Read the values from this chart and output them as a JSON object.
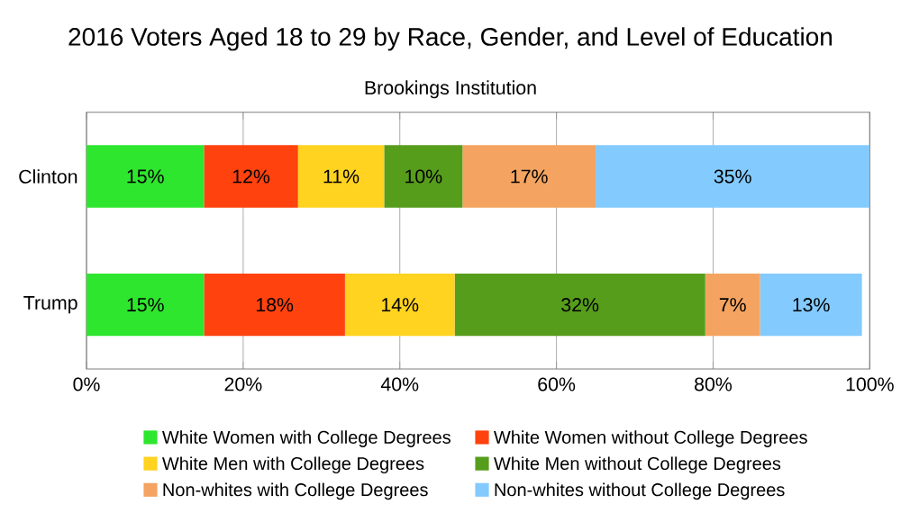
{
  "chart_data": {
    "type": "bar",
    "orientation": "horizontal",
    "stacked": true,
    "title": "2016 Voters Aged 18 to 29 by Race, Gender, and Level of Education",
    "subtitle": "Brookings Institution",
    "categories": [
      "Clinton",
      "Trump"
    ],
    "series": [
      {
        "name": "White Women with College Degrees",
        "color": "#2ee62e",
        "values": [
          15,
          15
        ],
        "value_labels": [
          "15%",
          "15%"
        ]
      },
      {
        "name": "White Women without College Degrees",
        "color": "#ff420e",
        "values": [
          12,
          18
        ],
        "value_labels": [
          "12%",
          "18%"
        ]
      },
      {
        "name": "White Men with College Degrees",
        "color": "#ffd320",
        "values": [
          11,
          14
        ],
        "value_labels": [
          "11%",
          "14%"
        ]
      },
      {
        "name": "White Men without College Degrees",
        "color": "#579d1c",
        "values": [
          10,
          32
        ],
        "value_labels": [
          "10%",
          "32%"
        ]
      },
      {
        "name": "Non-whites with College Degrees",
        "color": "#f4a460",
        "values": [
          17,
          7
        ],
        "value_labels": [
          "17%",
          "7%"
        ]
      },
      {
        "name": "Non-whites without College Degrees",
        "color": "#83caff",
        "values": [
          35,
          13
        ],
        "value_labels": [
          "35%",
          "13%"
        ]
      }
    ],
    "xlim": [
      0,
      100
    ],
    "xticks": [
      {
        "value": 0,
        "label": "0%"
      },
      {
        "value": 20,
        "label": "20%"
      },
      {
        "value": 40,
        "label": "40%"
      },
      {
        "value": 60,
        "label": "60%"
      },
      {
        "value": 80,
        "label": "80%"
      },
      {
        "value": 100,
        "label": "100%"
      }
    ],
    "grid": "x",
    "legend": "bottom"
  }
}
